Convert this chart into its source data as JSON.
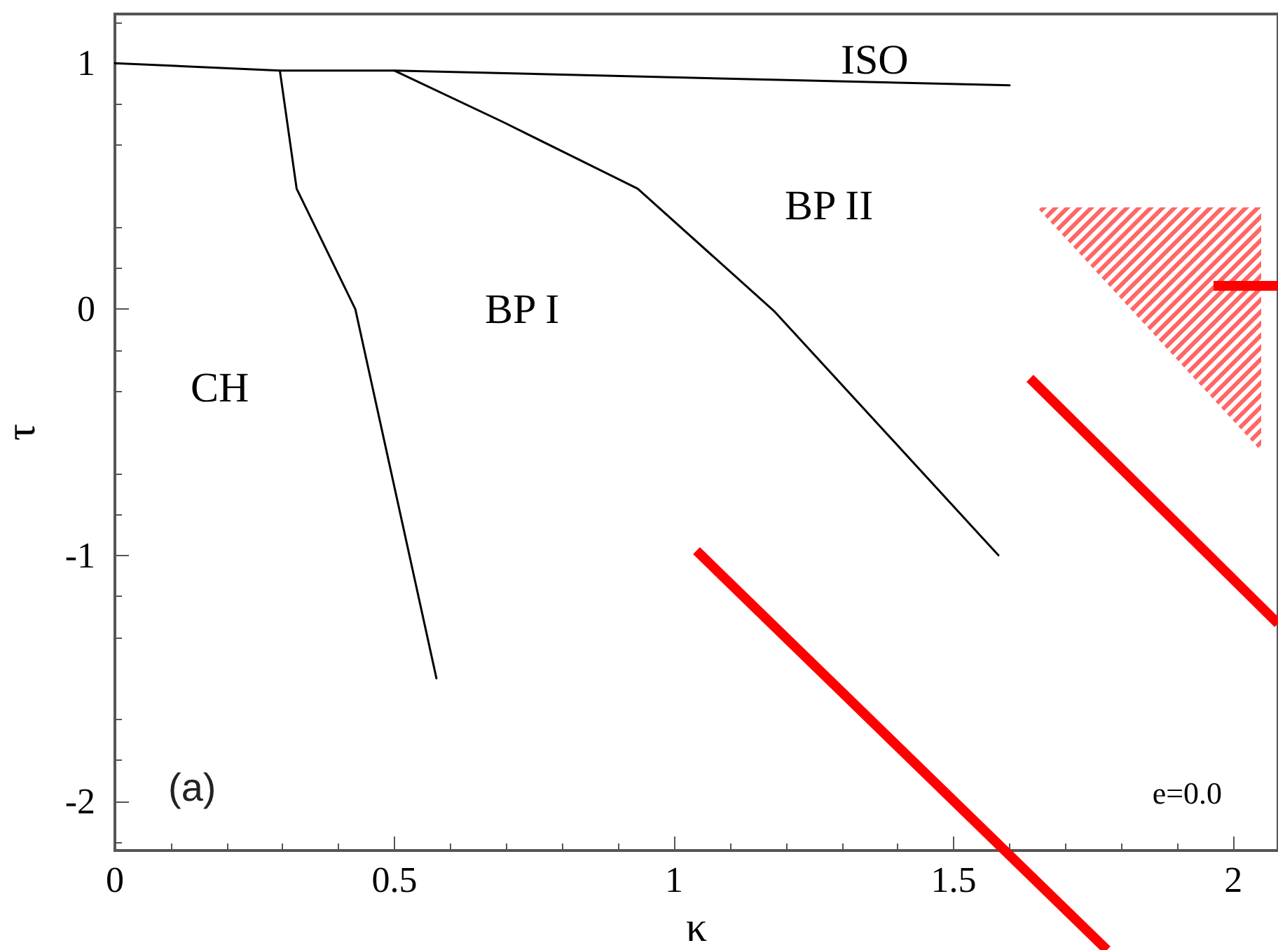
{
  "chart_data": {
    "type": "line",
    "xlabel": "κ",
    "ylabel": "τ",
    "xlim": [
      0,
      2.08
    ],
    "xticks": [
      0,
      0.5,
      1,
      1.5,
      2
    ],
    "ylim": [
      -2.2,
      1.2
    ],
    "yticks": [
      -2,
      -1,
      0,
      1
    ],
    "grid": false,
    "marker": "none",
    "line_style": "solid",
    "series": [
      {
        "color": "#000000",
        "x": [
          0,
          0.295,
          0.5,
          1.6
        ],
        "values": [
          1,
          0.97,
          0.97,
          0.91
        ]
      },
      {
        "color": "#000000",
        "x": [
          0.295,
          0.325,
          0.43,
          0.575
        ],
        "values": [
          0.97,
          0.49,
          0,
          -1.5
        ]
      },
      {
        "color": "#000000",
        "x": [
          0.5,
          0.695,
          0.935,
          1.18,
          1.58
        ],
        "values": [
          0.97,
          0.76,
          0.49,
          -0.01,
          -1.0
        ]
      }
    ],
    "annotations": [
      "ISO",
      "BP II",
      "BP I",
      "CH",
      "(a)",
      "e=0.0"
    ]
  }
}
